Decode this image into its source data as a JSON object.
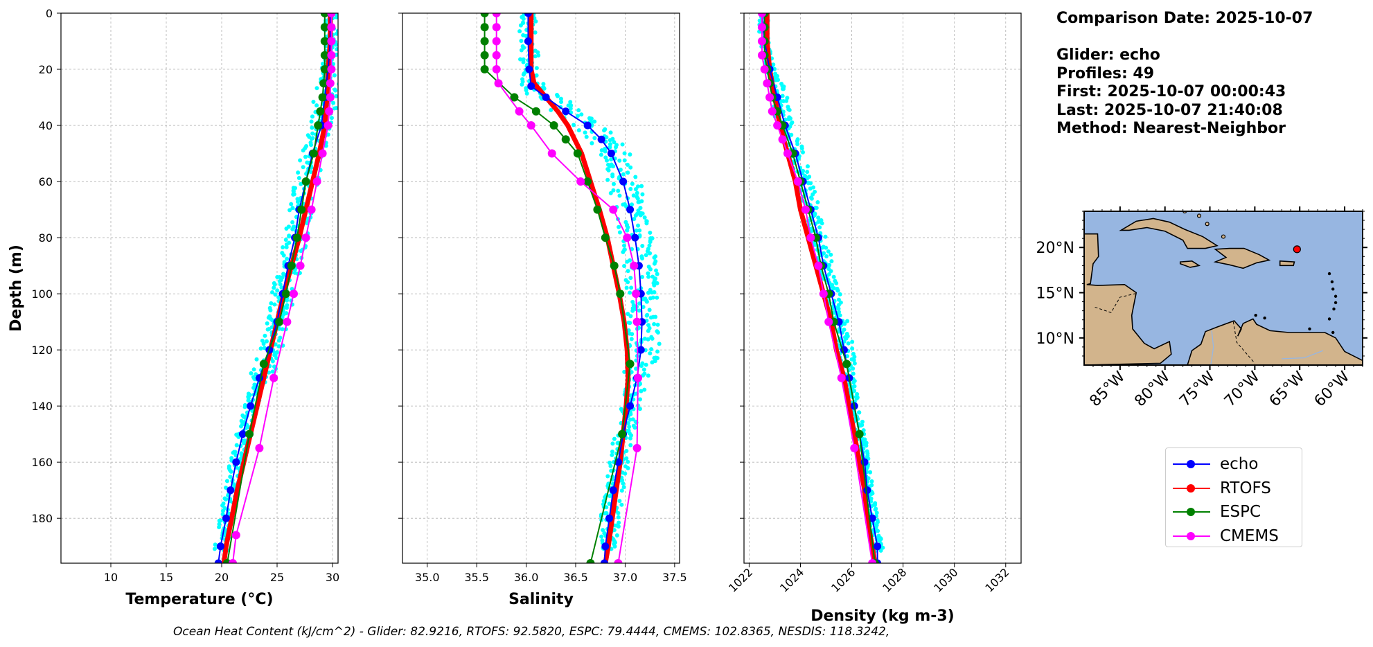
{
  "chart_data": [
    {
      "type": "line",
      "panel": "temperature",
      "xlabel": "Temperature (°C)",
      "ylabel": "Depth (m)",
      "xlim": [
        5.5,
        30.5
      ],
      "ylim": [
        196,
        0
      ],
      "y_inverted": true,
      "xticks": [
        10,
        15,
        20,
        25,
        30
      ],
      "yticks": [
        0,
        20,
        40,
        60,
        80,
        100,
        120,
        140,
        160,
        180
      ],
      "grid": true,
      "scatter_cloud": {
        "color": "#00ffff",
        "x_range": [
          19.5,
          30.0
        ]
      },
      "series": [
        {
          "name": "echo",
          "color": "#0000ff",
          "depth": [
            0,
            10,
            20,
            30,
            40,
            50,
            60,
            70,
            80,
            90,
            100,
            110,
            120,
            130,
            140,
            150,
            160,
            170,
            180,
            190,
            196
          ],
          "values": [
            29.8,
            29.8,
            29.6,
            29.3,
            29.0,
            28.2,
            27.6,
            27.0,
            26.6,
            26.0,
            25.5,
            25.0,
            24.3,
            23.4,
            22.6,
            21.9,
            21.3,
            20.8,
            20.4,
            19.9,
            19.7
          ]
        },
        {
          "name": "RTOFS",
          "color": "#ff0000",
          "depth": [
            0,
            10,
            20,
            30,
            40,
            50,
            60,
            70,
            80,
            90,
            100,
            110,
            120,
            130,
            140,
            150,
            160,
            170,
            180,
            190,
            196
          ],
          "values": [
            29.8,
            29.8,
            29.6,
            29.5,
            29.3,
            28.8,
            28.2,
            27.6,
            27.0,
            26.3,
            25.6,
            25.0,
            24.4,
            23.8,
            23.2,
            22.6,
            22.0,
            21.4,
            20.9,
            20.4,
            20.2
          ]
        },
        {
          "name": "ESPC",
          "color": "#008000",
          "depth": [
            0,
            5,
            10,
            15,
            20,
            25,
            30,
            35,
            40,
            50,
            60,
            70,
            80,
            90,
            100,
            110,
            125,
            150,
            196
          ],
          "values": [
            29.3,
            29.3,
            29.3,
            29.3,
            29.3,
            29.2,
            29.1,
            28.9,
            28.7,
            28.3,
            27.6,
            27.2,
            26.8,
            26.3,
            25.8,
            25.2,
            23.8,
            22.5,
            20.5
          ]
        },
        {
          "name": "CMEMS",
          "color": "#ff00ff",
          "depth": [
            0,
            5,
            10,
            15,
            20,
            25,
            30,
            35,
            40,
            50,
            60,
            70,
            80,
            90,
            100,
            110,
            130,
            155,
            186,
            196
          ],
          "values": [
            29.9,
            29.9,
            29.9,
            29.9,
            29.9,
            29.8,
            29.8,
            29.7,
            29.6,
            29.1,
            28.6,
            28.1,
            27.6,
            27.1,
            26.5,
            25.9,
            24.7,
            23.4,
            21.3,
            21.0
          ]
        }
      ]
    },
    {
      "type": "line",
      "panel": "salinity",
      "xlabel": "Salinity",
      "xlim": [
        34.75,
        37.55
      ],
      "ylim": [
        196,
        0
      ],
      "y_inverted": true,
      "xticks": [
        35.0,
        35.5,
        36.0,
        36.5,
        37.0,
        37.5
      ],
      "grid": true,
      "scatter_cloud": {
        "color": "#00ffff",
        "x_range": [
          35.9,
          37.3
        ]
      },
      "series": [
        {
          "name": "echo",
          "color": "#0000ff",
          "depth": [
            0,
            10,
            20,
            26,
            30,
            35,
            40,
            45,
            50,
            60,
            70,
            80,
            90,
            100,
            110,
            120,
            130,
            140,
            150,
            160,
            170,
            180,
            190,
            196
          ],
          "values": [
            36.02,
            36.02,
            36.03,
            36.05,
            36.2,
            36.4,
            36.62,
            36.76,
            36.86,
            36.98,
            37.05,
            37.1,
            37.14,
            37.16,
            37.17,
            37.16,
            37.12,
            37.05,
            36.98,
            36.93,
            36.88,
            36.84,
            36.8,
            36.79
          ]
        },
        {
          "name": "RTOFS",
          "color": "#ff0000",
          "depth": [
            0,
            10,
            20,
            25,
            30,
            35,
            40,
            50,
            60,
            70,
            80,
            90,
            100,
            110,
            120,
            130,
            140,
            150,
            160,
            170,
            180,
            190,
            196
          ],
          "values": [
            36.05,
            36.05,
            36.05,
            36.08,
            36.2,
            36.32,
            36.42,
            36.56,
            36.65,
            36.74,
            36.82,
            36.88,
            36.94,
            36.99,
            37.02,
            37.03,
            37.01,
            36.98,
            36.95,
            36.91,
            36.87,
            36.83,
            36.8
          ]
        },
        {
          "name": "ESPC",
          "color": "#008000",
          "depth": [
            0,
            5,
            10,
            15,
            20,
            30,
            35,
            40,
            45,
            50,
            60,
            70,
            80,
            90,
            100,
            125,
            150,
            196
          ],
          "values": [
            35.58,
            35.58,
            35.58,
            35.58,
            35.58,
            35.88,
            36.1,
            36.28,
            36.4,
            36.52,
            36.62,
            36.72,
            36.8,
            36.89,
            36.95,
            37.05,
            36.97,
            36.65
          ]
        },
        {
          "name": "CMEMS",
          "color": "#ff00ff",
          "depth": [
            0,
            5,
            10,
            15,
            20,
            25,
            35,
            40,
            50,
            60,
            70,
            80,
            90,
            100,
            110,
            130,
            155,
            196
          ],
          "values": [
            35.7,
            35.7,
            35.7,
            35.7,
            35.7,
            35.72,
            35.93,
            36.05,
            36.26,
            36.55,
            36.88,
            37.02,
            37.09,
            37.11,
            37.12,
            37.13,
            37.12,
            36.93
          ]
        }
      ]
    },
    {
      "type": "line",
      "panel": "density",
      "xlabel": "Density (kg m-3)",
      "xlim": [
        1021.8,
        1032.6
      ],
      "ylim": [
        196,
        0
      ],
      "y_inverted": true,
      "xticks": [
        1022,
        1024,
        1026,
        1028,
        1030,
        1032
      ],
      "grid": true,
      "scatter_cloud": {
        "color": "#00ffff",
        "x_range": [
          1022.6,
          1027.0
        ]
      },
      "series": [
        {
          "name": "echo",
          "color": "#0000ff",
          "depth": [
            0,
            10,
            20,
            30,
            40,
            50,
            60,
            70,
            80,
            90,
            100,
            110,
            120,
            130,
            140,
            150,
            160,
            170,
            180,
            190,
            196
          ],
          "values": [
            1022.5,
            1022.6,
            1022.8,
            1023.1,
            1023.4,
            1023.8,
            1024.1,
            1024.4,
            1024.7,
            1024.9,
            1025.2,
            1025.5,
            1025.7,
            1025.9,
            1026.1,
            1026.3,
            1026.5,
            1026.6,
            1026.8,
            1027.0,
            1027.0
          ]
        },
        {
          "name": "RTOFS",
          "color": "#ff0000",
          "depth": [
            0,
            10,
            20,
            30,
            40,
            50,
            60,
            70,
            80,
            90,
            100,
            110,
            120,
            130,
            140,
            150,
            160,
            170,
            180,
            190,
            196
          ],
          "values": [
            1022.7,
            1022.7,
            1022.8,
            1023.0,
            1023.2,
            1023.5,
            1023.8,
            1024.0,
            1024.3,
            1024.6,
            1024.9,
            1025.2,
            1025.4,
            1025.7,
            1025.9,
            1026.1,
            1026.3,
            1026.5,
            1026.6,
            1026.8,
            1026.9
          ]
        },
        {
          "name": "ESPC",
          "color": "#008000",
          "depth": [
            0,
            5,
            10,
            15,
            20,
            25,
            30,
            35,
            40,
            50,
            60,
            70,
            80,
            90,
            100,
            110,
            125,
            150,
            196
          ],
          "values": [
            1022.6,
            1022.6,
            1022.6,
            1022.6,
            1022.7,
            1022.8,
            1022.9,
            1023.1,
            1023.3,
            1023.7,
            1024.0,
            1024.3,
            1024.6,
            1024.8,
            1025.1,
            1025.3,
            1025.8,
            1026.3,
            1026.9
          ]
        },
        {
          "name": "CMEMS",
          "color": "#ff00ff",
          "depth": [
            0,
            5,
            10,
            15,
            20,
            25,
            30,
            35,
            40,
            45,
            50,
            60,
            70,
            80,
            90,
            100,
            110,
            130,
            155,
            196
          ],
          "values": [
            1022.5,
            1022.5,
            1022.5,
            1022.5,
            1022.6,
            1022.7,
            1022.8,
            1022.9,
            1023.1,
            1023.3,
            1023.5,
            1023.9,
            1024.2,
            1024.4,
            1024.7,
            1024.9,
            1025.1,
            1025.6,
            1026.1,
            1026.8
          ]
        }
      ]
    },
    {
      "type": "map",
      "panel": "location-map",
      "lon_range": [
        -89,
        -58
      ],
      "lat_range": [
        7,
        24
      ],
      "xticks": [
        "85°W",
        "80°W",
        "75°W",
        "70°W",
        "65°W",
        "60°W"
      ],
      "yticks": [
        "10°N",
        "15°N",
        "20°N"
      ],
      "ocean_color": "#97b6e1",
      "land_color": "#d2b48c",
      "marker": {
        "lon": -65.3,
        "lat": 19.8,
        "color": "#ff0000"
      }
    }
  ],
  "info": {
    "comparison": "Comparison Date: 2025-10-07",
    "glider": "Glider: echo",
    "profiles": "Profiles: 49",
    "first": "First: 2025-10-07 00:00:43",
    "last": "Last: 2025-10-07 21:40:08",
    "method": "Method: Nearest-Neighbor"
  },
  "legend": [
    {
      "label": "echo",
      "color": "#0000ff"
    },
    {
      "label": "RTOFS",
      "color": "#ff0000"
    },
    {
      "label": "ESPC",
      "color": "#008000"
    },
    {
      "label": "CMEMS",
      "color": "#ff00ff"
    }
  ],
  "footer": "Ocean Heat Content (kJ/cm^2) - Glider: 82.9216,  RTOFS: 92.5820,  ESPC: 79.4444,  CMEMS: 102.8365,  NESDIS: 118.3242,"
}
